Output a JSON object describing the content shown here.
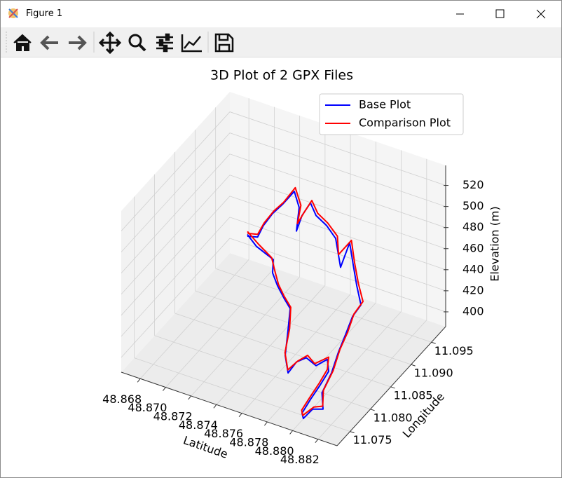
{
  "window": {
    "title": "Figure 1"
  },
  "chart_data": {
    "type": "line3d",
    "title": "3D Plot of 2 GPX Files",
    "xlabel": "Latitude",
    "ylabel": "Longitude",
    "zlabel": "Elevation (m)",
    "xlim": [
      48.8665,
      48.8835
    ],
    "ylim": [
      11.0718,
      11.0985
    ],
    "zlim": [
      386,
      539
    ],
    "xticks": [
      48.868,
      {
        "value": 48.87,
        "label": "48.870"
      },
      48.872,
      48.874,
      48.876,
      48.878,
      {
        "value": 48.88,
        "label": "48.880"
      },
      48.882
    ],
    "yticks": [
      11.075,
      {
        "value": 11.08,
        "label": "11.080"
      },
      11.085,
      {
        "value": 11.09,
        "label": "11.090"
      },
      11.095
    ],
    "zticks": [
      400,
      420,
      440,
      460,
      480,
      500,
      520
    ],
    "grid": true,
    "legend": "upper right",
    "series": [
      {
        "name": "Base Plot",
        "color": "#0000ff",
        "x": [
          48.87294,
          48.8738,
          48.87518,
          48.87541,
          48.876,
          48.87676,
          48.87732,
          48.87773,
          48.87816,
          48.87876,
          48.87901,
          48.87948,
          48.88027,
          48.88078,
          48.88117,
          48.88096,
          48.88075,
          48.88059,
          48.88079,
          48.88112,
          48.88175,
          48.88125,
          48.88137,
          48.88128,
          48.88127,
          48.88127,
          48.88149,
          48.88076,
          48.88003,
          48.87931,
          48.87936,
          48.87835,
          48.87749,
          48.87661,
          48.87598,
          48.87577,
          48.87582,
          48.8755,
          48.87479,
          48.87433,
          48.87395,
          48.8737,
          48.87353,
          48.87298
        ],
        "y": [
          11.0827,
          11.08227,
          11.08209,
          11.0812,
          11.08057,
          11.07993,
          11.07956,
          11.07774,
          11.07572,
          11.07455,
          11.07583,
          11.07677,
          11.07671,
          11.07789,
          11.07701,
          11.07543,
          11.07383,
          11.07227,
          11.07198,
          11.07321,
          11.07382,
          11.07511,
          11.07708,
          11.07908,
          11.08082,
          11.08256,
          11.08395,
          11.08519,
          11.08659,
          11.08798,
          11.08558,
          11.08753,
          11.08796,
          11.08814,
          11.08872,
          11.08732,
          11.08577,
          11.08744,
          11.08847,
          11.08698,
          11.08576,
          11.08429,
          11.08338,
          11.08259
        ],
        "z": [
          497,
          491,
          485,
          477,
          470,
          463,
          458,
          446,
          433,
          424,
          430,
          432,
          428,
          431,
          425,
          417,
          410,
          403,
          400,
          405,
          405,
          413,
          424,
          435,
          444,
          454,
          460,
          470,
          481,
          493,
          480,
          495,
          502,
          507,
          514,
          507,
          499,
          513,
          521,
          513,
          508,
          502,
          494,
          496
        ]
      },
      {
        "name": "Comparison Plot",
        "color": "#ff0000",
        "x": [
          48.8729,
          48.87392,
          48.8751,
          48.87555,
          48.87612,
          48.87669,
          48.8774,
          48.87781,
          48.8781,
          48.87869,
          48.87915,
          48.87955,
          48.8802,
          48.88085,
          48.8811,
          48.8809,
          48.8807,
          48.88052,
          48.8807,
          48.8812,
          48.88168,
          48.88132,
          48.88146,
          48.88135,
          48.88139,
          48.88134,
          48.8816,
          48.88085,
          48.8801,
          48.8794,
          48.879,
          48.87845,
          48.87755,
          48.8767,
          48.87605,
          48.87585,
          48.8757,
          48.8756,
          48.87482,
          48.8744,
          48.874,
          48.87372,
          48.8735,
          48.87295
        ],
        "y": [
          11.08285,
          11.0824,
          11.08195,
          11.08132,
          11.08045,
          11.08005,
          11.07945,
          11.0779,
          11.07585,
          11.0747,
          11.0757,
          11.0769,
          11.0766,
          11.078,
          11.0769,
          11.07555,
          11.07395,
          11.0724,
          11.0721,
          11.0733,
          11.07395,
          11.07525,
          11.0772,
          11.0792,
          11.08095,
          11.0827,
          11.0841,
          11.0853,
          11.0867,
          11.08812,
          11.0862,
          11.08765,
          11.08808,
          11.08826,
          11.08885,
          11.08745,
          11.0864,
          11.08756,
          11.08862,
          11.0871,
          11.08588,
          11.0844,
          11.0835,
          11.08272
        ],
        "z": [
          499,
          493,
          487,
          479,
          472,
          465,
          460,
          448,
          435,
          426,
          432,
          434,
          430,
          433,
          427,
          419,
          412,
          405,
          402,
          407,
          407,
          415,
          426,
          437,
          446,
          456,
          463,
          472,
          483,
          495,
          488,
          497,
          504,
          509,
          516,
          509,
          503,
          515,
          524,
          515,
          510,
          504,
          496,
          498
        ]
      }
    ]
  }
}
